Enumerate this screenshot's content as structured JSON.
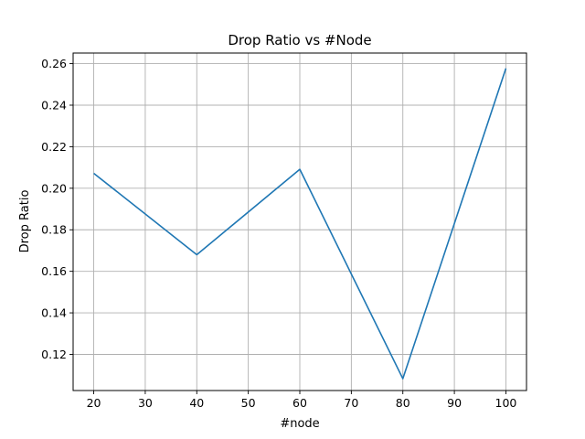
{
  "chart_data": {
    "type": "line",
    "title": "Drop Ratio vs #Node",
    "xlabel": "#node",
    "ylabel": "Drop Ratio",
    "x": [
      20,
      40,
      60,
      80,
      100
    ],
    "series": [
      {
        "values": [
          0.2072,
          0.168,
          0.2091,
          0.1083,
          0.2577
        ],
        "color": "#1f77b4"
      }
    ],
    "xlim": [
      16,
      104
    ],
    "ylim": [
      0.1026,
      0.2651
    ],
    "xticks": [
      20,
      30,
      40,
      50,
      60,
      70,
      80,
      90,
      100
    ],
    "xtick_labels": [
      "20",
      "30",
      "40",
      "50",
      "60",
      "70",
      "80",
      "90",
      "100"
    ],
    "yticks": [
      0.12,
      0.14,
      0.16,
      0.18,
      0.2,
      0.22,
      0.24,
      0.26
    ],
    "ytick_labels": [
      "0.12",
      "0.14",
      "0.16",
      "0.18",
      "0.20",
      "0.22",
      "0.24",
      "0.26"
    ],
    "grid": true,
    "legend": false
  }
}
